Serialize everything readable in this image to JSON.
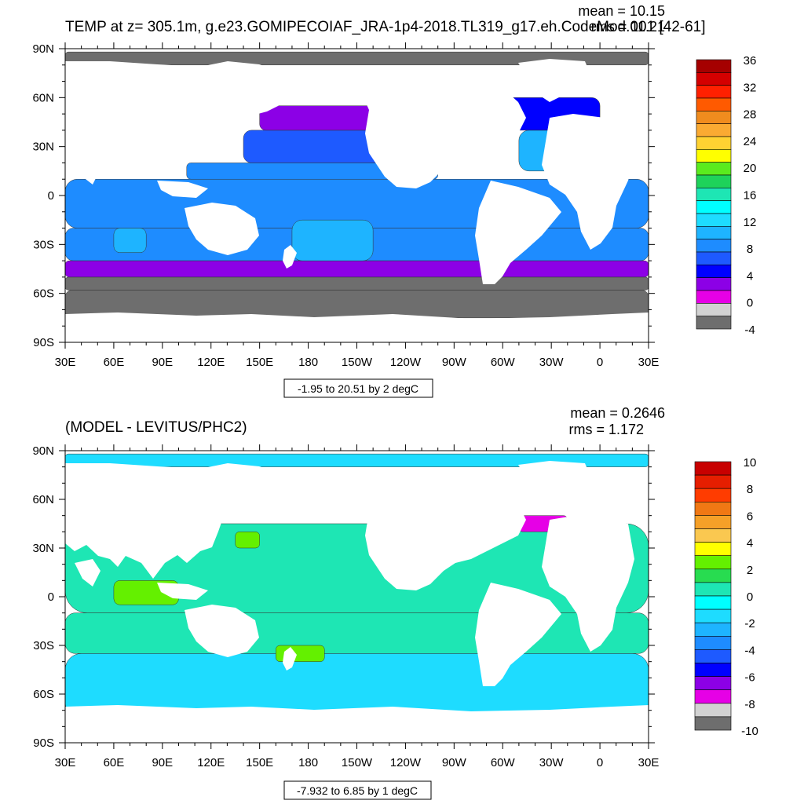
{
  "panels": [
    {
      "title": "TEMP at z= 305.1m, g.e23.GOMIPECOIAF_JRA-1p4-2018.TL319_g17.eh.CodeMod.001 [42-61]",
      "stats": {
        "mean": "mean = 10.15",
        "rms": "rms = 11.21"
      },
      "range_label": "-1.95 to 20.51 by 2 degC",
      "x_ticks": [
        "30E",
        "60E",
        "90E",
        "120E",
        "150E",
        "180",
        "150W",
        "120W",
        "90W",
        "60W",
        "30W",
        "0",
        "30E"
      ],
      "y_ticks": [
        "90N",
        "60N",
        "30N",
        "0",
        "30S",
        "60S",
        "90S"
      ],
      "colorbar": {
        "labels": [
          "36",
          "32",
          "28",
          "24",
          "20",
          "16",
          "12",
          "8",
          "4",
          "0",
          "-4"
        ],
        "colors": [
          "#a50000",
          "#d40000",
          "#ff2000",
          "#ff5a00",
          "#f08c1e",
          "#faaa32",
          "#ffd232",
          "#ffff00",
          "#5aeb1e",
          "#1ed25a",
          "#1ee6b4",
          "#00ffff",
          "#1edcff",
          "#1eb4ff",
          "#1e8cff",
          "#1e5aff",
          "#0000ff",
          "#8c00e6",
          "#e600e6",
          "#d2d2d2",
          "#6e6e6e"
        ]
      }
    },
    {
      "title": "(MODEL - LEVITUS/PHC2)",
      "stats": {
        "mean": "mean = 0.2646",
        "rms": "rms = 1.172"
      },
      "range_label": "-7.932 to 6.85 by 1 degC",
      "x_ticks": [
        "30E",
        "60E",
        "90E",
        "120E",
        "150E",
        "180",
        "150W",
        "120W",
        "90W",
        "60W",
        "30W",
        "0",
        "30E"
      ],
      "y_ticks": [
        "90N",
        "60N",
        "30N",
        "0",
        "30S",
        "60S",
        "90S"
      ],
      "colorbar": {
        "labels": [
          "10",
          "8",
          "6",
          "4",
          "2",
          "0",
          "-2",
          "-4",
          "-6",
          "-8",
          "-10"
        ],
        "colors": [
          "#c80000",
          "#e61e00",
          "#ff3c00",
          "#f07814",
          "#f5a028",
          "#fac850",
          "#ffff00",
          "#64f000",
          "#28dc50",
          "#1ee6b4",
          "#00ffff",
          "#1edcff",
          "#1eb4ff",
          "#1e8cff",
          "#1e5aff",
          "#0000ff",
          "#8c00e6",
          "#e600e6",
          "#d2d2d2",
          "#6e6e6e"
        ]
      }
    }
  ],
  "chart_data": [
    {
      "type": "heatmap",
      "title": "TEMP at z= 305.1m, g.e23.GOMIPECOIAF_JRA-1p4-2018.TL319_g17.eh.CodeMod.001 [42-61]",
      "xlabel": "",
      "ylabel": "",
      "x_range": [
        30,
        390
      ],
      "y_range": [
        -90,
        90
      ],
      "mean": 10.15,
      "rms": 11.21,
      "contour_min": -1.95,
      "contour_max": 20.51,
      "contour_step": 2,
      "units": "degC",
      "colorbar_range": [
        -4,
        36
      ],
      "fields": [
        {
          "lon": [
            30,
            390
          ],
          "lat": [
            -40,
            -20
          ],
          "level": 8
        },
        {
          "lon": [
            30,
            390
          ],
          "lat": [
            -75,
            -58
          ],
          "level": -4
        },
        {
          "lon": [
            30,
            390
          ],
          "lat": [
            -58,
            -50
          ],
          "level": -4
        },
        {
          "lon": [
            30,
            390
          ],
          "lat": [
            -50,
            -40
          ],
          "level": 2
        },
        {
          "lon": [
            30,
            390
          ],
          "lat": [
            -20,
            10
          ],
          "level": 9
        },
        {
          "lon": [
            105,
            260
          ],
          "lat": [
            10,
            20
          ],
          "level": 9
        },
        {
          "lon": [
            140,
            250
          ],
          "lat": [
            20,
            40
          ],
          "level": 7
        },
        {
          "lon": [
            150,
            235
          ],
          "lat": [
            40,
            55
          ],
          "level": 2
        },
        {
          "lon": [
            30,
            390
          ],
          "lat": [
            80,
            88
          ],
          "level": -4
        },
        {
          "lon": [
            310,
            360
          ],
          "lat": [
            15,
            40
          ],
          "level": 11
        },
        {
          "lon": [
            300,
            360
          ],
          "lat": [
            40,
            60
          ],
          "level": 4
        },
        {
          "lon": [
            170,
            220
          ],
          "lat": [
            -40,
            -15
          ],
          "level": 10
        },
        {
          "lon": [
            60,
            80
          ],
          "lat": [
            -35,
            -20
          ],
          "level": 10
        }
      ],
      "notes": [
        "Land masked in white"
      ]
    },
    {
      "type": "heatmap",
      "title": "(MODEL - LEVITUS/PHC2)",
      "xlabel": "",
      "ylabel": "",
      "x_range": [
        30,
        390
      ],
      "y_range": [
        -90,
        90
      ],
      "mean": 0.2646,
      "rms": 1.172,
      "contour_min": -7.932,
      "contour_max": 6.85,
      "contour_step": 1,
      "units": "degC",
      "colorbar_range": [
        -10,
        10
      ],
      "fields": [
        {
          "lon": [
            30,
            390
          ],
          "lat": [
            -10,
            45
          ],
          "level": 0.5
        },
        {
          "lon": [
            30,
            390
          ],
          "lat": [
            -75,
            -35
          ],
          "level": -1
        },
        {
          "lon": [
            30,
            390
          ],
          "lat": [
            -35,
            -10
          ],
          "level": 0.5
        },
        {
          "lon": [
            30,
            390
          ],
          "lat": [
            80,
            88
          ],
          "level": -1
        },
        {
          "lon": [
            60,
            100
          ],
          "lat": [
            -5,
            10
          ],
          "level": 2.5
        },
        {
          "lon": [
            135,
            150
          ],
          "lat": [
            30,
            40
          ],
          "level": 3
        },
        {
          "lon": [
            160,
            190
          ],
          "lat": [
            -40,
            -30
          ],
          "level": 2.5
        },
        {
          "lon": [
            310,
            340
          ],
          "lat": [
            40,
            50
          ],
          "level": -7
        }
      ]
    }
  ]
}
